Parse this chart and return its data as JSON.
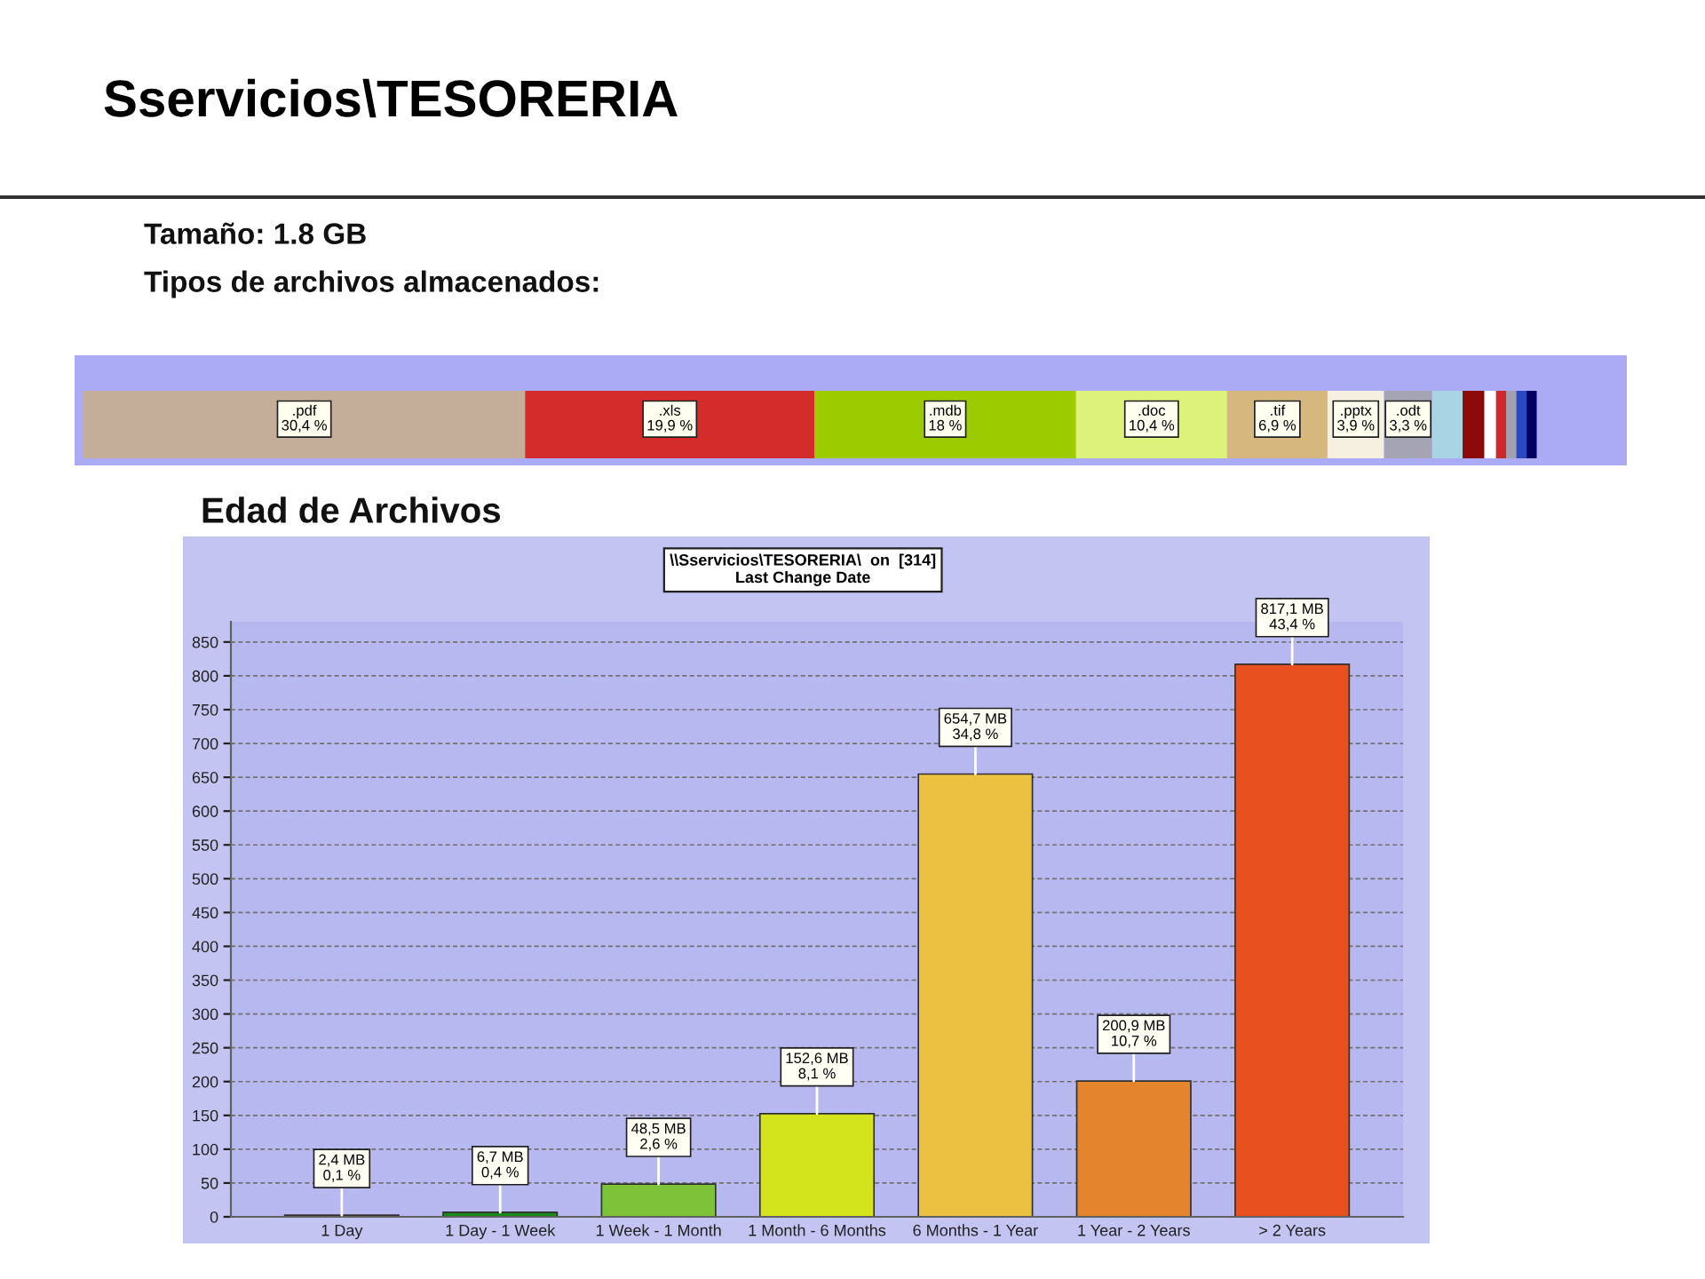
{
  "chart_data": [
    {
      "type": "bar",
      "orientation": "horizontal",
      "stacked": true,
      "tick_labels": false,
      "title": "Sservicios\\TESORERIA",
      "subtitle": "Tamaño: 1.8 GB",
      "annotations": [
        "Tipos de archivos almacenados:"
      ],
      "categories": [
        null
      ],
      "series": [
        {
          "name": ".pdf",
          "color": "#c4ae9a",
          "values": [
            30.4
          ],
          "value_labels": [
            "30,4 %"
          ]
        },
        {
          "name": ".xls",
          "color": "#d42b2b",
          "values": [
            19.9
          ],
          "value_labels": [
            "19,9 %"
          ]
        },
        {
          "name": ".mdb",
          "color": "#9ccc00",
          "values": [
            18
          ],
          "value_labels": [
            "18 %"
          ]
        },
        {
          "name": ".doc",
          "color": "#dcf27a",
          "values": [
            10.4
          ],
          "value_labels": [
            "10,4 %"
          ]
        },
        {
          "name": ".tif",
          "color": "#d6b87e",
          "values": [
            6.9
          ],
          "value_labels": [
            "6,9 %"
          ]
        },
        {
          "name": ".pptx",
          "color": "#f5f0e0",
          "values": [
            3.9
          ],
          "value_labels": [
            "3,9 %"
          ]
        },
        {
          "name": ".odt",
          "color": "#a4a4b4",
          "values": [
            3.3
          ],
          "value_labels": [
            "3,3 %"
          ]
        },
        {
          "color": "#a8d4e4",
          "values": [
            2.1
          ]
        },
        {
          "color": "#8c0a0a",
          "values": [
            1.5
          ]
        },
        {
          "color": "#ffffff",
          "values": [
            0.8
          ]
        },
        {
          "color": "#d02828",
          "values": [
            0.7
          ]
        },
        {
          "color": "#a0a0b0",
          "values": [
            0.7
          ]
        },
        {
          "color": "#2848c0",
          "values": [
            0.7
          ]
        },
        {
          "color": "#000060",
          "values": [
            0.7
          ]
        }
      ]
    },
    {
      "type": "bar",
      "title": "Edad de Archivos",
      "subtitle": "\\\\Sservicios\\TESORERIA\\  on  [314]\nLast Change Date",
      "categories": [
        "1 Day",
        "1 Day - 1 Week",
        "1 Week - 1 Month",
        "1 Month - 6 Months",
        "6 Months - 1 Year",
        "1 Year - 2 Years",
        "> 2 Years"
      ],
      "values": [
        2.4,
        6.7,
        48.5,
        152.6,
        654.7,
        200.9,
        817.1
      ],
      "value_labels": [
        "2,4 MB\n0,1 %",
        "6,7 MB\n0,4 %",
        "48,5 MB\n2,6 %",
        "152,6 MB\n8,1 %",
        "654,7 MB\n34,8 %",
        "200,9 MB\n10,7 %",
        "817,1 MB\n43,4 %"
      ],
      "colors": [
        "#1a8a1a",
        "#1a8a1a",
        "#7ec23a",
        "#d4e41c",
        "#ecc040",
        "#e4842c",
        "#e85020"
      ],
      "ylim": [
        0,
        880
      ],
      "yticks": [
        0,
        50,
        100,
        150,
        200,
        250,
        300,
        350,
        400,
        450,
        500,
        550,
        600,
        650,
        700,
        750,
        800,
        850
      ],
      "grid": "y"
    }
  ]
}
